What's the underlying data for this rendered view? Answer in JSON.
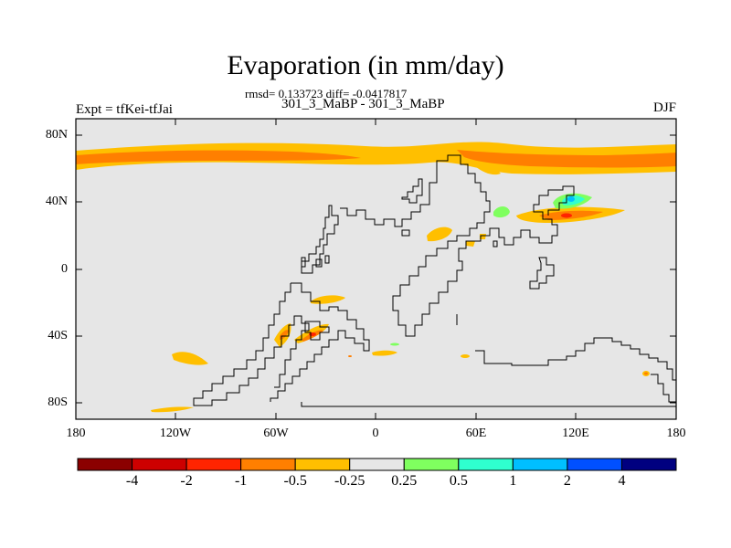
{
  "title": "Evaporation (in mm/day)",
  "stats_line": "rmsd= 0.133723 diff= -0.0417817",
  "runs_line": "301_3_MaBP - 301_3_MaBP",
  "expt_label": "Expt = tfKei-tfJai",
  "season": "DJF",
  "lat_labels": [
    "80N",
    "40N",
    "0",
    "40S",
    "80S"
  ],
  "lon_labels": [
    "180",
    "120W",
    "60W",
    "0",
    "60E",
    "120E",
    "180"
  ],
  "colorbar": {
    "labels": [
      "-4",
      "-2",
      "-1",
      "-0.5",
      "-0.25",
      "0.25",
      "0.5",
      "1",
      "2",
      "4"
    ],
    "colors": [
      "#8b0000",
      "#cd0000",
      "#ff2400",
      "#ff7f00",
      "#ffbf00",
      "#e6e6e6",
      "#7fff5f",
      "#2fffcf",
      "#00bfff",
      "#0050ff",
      "#000080"
    ]
  },
  "colors": {
    "background": "#e6e6e6",
    "orange_light": "#ffbf00",
    "orange_dark": "#ff7f00",
    "red": "#ff2400",
    "green": "#7fff5f",
    "cyan": "#2fffcf",
    "blue": "#00bfff",
    "coastline": "#000000"
  }
}
